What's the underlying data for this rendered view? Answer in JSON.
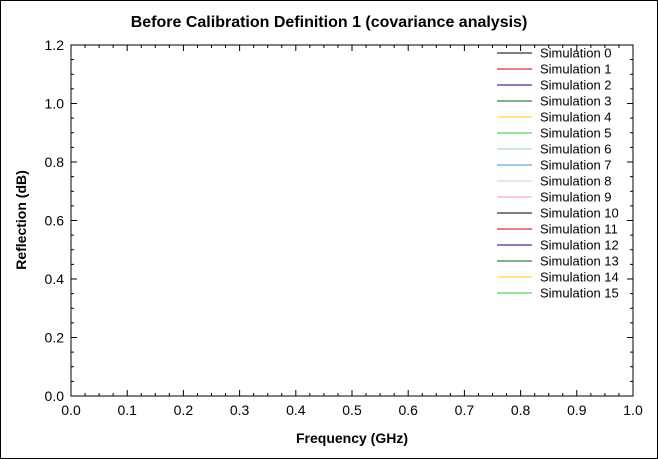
{
  "chart_data": {
    "type": "line",
    "title": "Before Calibration Definition 1 (covariance analysis)",
    "xlabel": "Frequency (GHz)",
    "ylabel": "Reflection (dB)",
    "xlim": [
      0.0,
      1.0
    ],
    "ylim": [
      0.0,
      1.2
    ],
    "x_ticks": [
      "0.0",
      "0.1",
      "0.2",
      "0.3",
      "0.4",
      "0.5",
      "0.6",
      "0.7",
      "0.8",
      "0.9",
      "1.0"
    ],
    "y_ticks": [
      "0.0",
      "0.2",
      "0.4",
      "0.6",
      "0.8",
      "1.0",
      "1.2"
    ],
    "grid": false,
    "legend_position": "top-right",
    "series": [
      {
        "name": "Simulation 0",
        "color": "#000000",
        "values": []
      },
      {
        "name": "Simulation 1",
        "color": "#cc0000",
        "values": []
      },
      {
        "name": "Simulation 2",
        "color": "#000099",
        "values": []
      },
      {
        "name": "Simulation 3",
        "color": "#006600",
        "values": []
      },
      {
        "name": "Simulation 4",
        "color": "#ffcc00",
        "values": []
      },
      {
        "name": "Simulation 5",
        "color": "#33cc33",
        "values": []
      },
      {
        "name": "Simulation 6",
        "color": "#99cccc",
        "values": []
      },
      {
        "name": "Simulation 7",
        "color": "#3399cc",
        "values": []
      },
      {
        "name": "Simulation 8",
        "color": "#cccccc",
        "values": []
      },
      {
        "name": "Simulation 9",
        "color": "#ff9999",
        "values": []
      },
      {
        "name": "Simulation 10",
        "color": "#000000",
        "values": []
      },
      {
        "name": "Simulation 11",
        "color": "#cc0000",
        "values": []
      },
      {
        "name": "Simulation 12",
        "color": "#000099",
        "values": []
      },
      {
        "name": "Simulation 13",
        "color": "#006600",
        "values": []
      },
      {
        "name": "Simulation 14",
        "color": "#ffcc00",
        "values": []
      },
      {
        "name": "Simulation 15",
        "color": "#33cc33",
        "values": []
      }
    ]
  }
}
